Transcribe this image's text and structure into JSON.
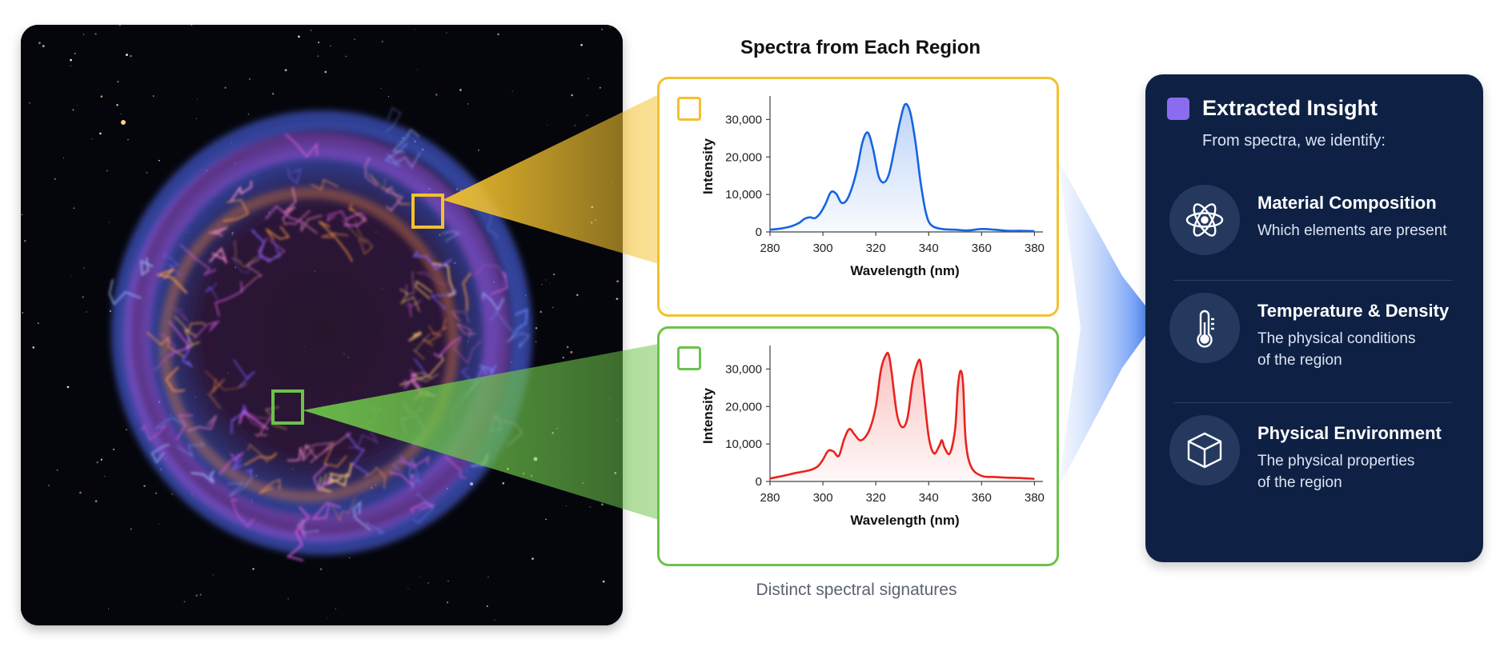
{
  "spectra_title": "Spectra from Each Region",
  "caption": "Distinct spectral signatures",
  "colors": {
    "yellow_region": "#f2c12e",
    "green_region": "#6cc24a",
    "blue_spectrum": "#1565e0",
    "red_spectrum": "#e8231d",
    "panel_bg": "#0e2144",
    "accent_square": "#8b6cf0"
  },
  "chart_data": [
    {
      "type": "line",
      "region": "yellow",
      "xlabel": "Wavelength (nm)",
      "ylabel": "Intensity",
      "xlim": [
        280,
        382
      ],
      "ylim": [
        0,
        35000
      ],
      "x_ticks": [
        "280",
        "300",
        "320",
        "340",
        "360",
        "380"
      ],
      "y_ticks": [
        "0",
        "10,000",
        "20,000",
        "30,000"
      ],
      "series": [
        {
          "x": [
            280,
            284,
            288,
            291,
            293,
            295,
            297,
            299,
            301,
            303,
            305,
            307,
            309,
            311,
            313,
            315,
            317,
            319,
            321,
            323,
            325,
            327,
            329,
            331,
            333,
            335,
            337,
            339,
            341,
            345,
            350,
            355,
            360,
            365,
            370,
            375,
            380
          ],
          "y": [
            600,
            900,
            1500,
            2400,
            3500,
            3900,
            3700,
            5000,
            7500,
            10600,
            10200,
            7800,
            8500,
            11800,
            17000,
            24000,
            26500,
            22000,
            15000,
            13200,
            15500,
            22000,
            29000,
            34000,
            32000,
            24000,
            13000,
            5000,
            1800,
            800,
            600,
            400,
            800,
            600,
            300,
            300,
            200
          ]
        }
      ]
    },
    {
      "type": "line",
      "region": "green",
      "xlabel": "Wavelength (nm)",
      "ylabel": "Intensity",
      "xlim": [
        280,
        382
      ],
      "ylim": [
        0,
        35000
      ],
      "x_ticks": [
        "280",
        "300",
        "320",
        "340",
        "360",
        "380"
      ],
      "y_ticks": [
        "0",
        "10,000",
        "20,000",
        "30,000"
      ],
      "series": [
        {
          "x": [
            280,
            285,
            290,
            295,
            298,
            300,
            302,
            304,
            306,
            308,
            310,
            312,
            314,
            316,
            318,
            320,
            322,
            324,
            325,
            326,
            328,
            330,
            332,
            334,
            336,
            337,
            338,
            340,
            342,
            344,
            345,
            346,
            348,
            350,
            351,
            352,
            353,
            354,
            356,
            360,
            365,
            370,
            375,
            380
          ],
          "y": [
            800,
            1500,
            2300,
            3000,
            4000,
            5800,
            8200,
            8000,
            6800,
            11200,
            14000,
            12500,
            11000,
            11800,
            14500,
            20000,
            30000,
            34000,
            33500,
            29000,
            18000,
            14500,
            17000,
            27000,
            32000,
            31500,
            25000,
            12000,
            7500,
            9500,
            11000,
            9000,
            7500,
            14000,
            25000,
            29500,
            26000,
            11000,
            4000,
            1500,
            1200,
            1000,
            900,
            700
          ]
        }
      ]
    }
  ],
  "insight": {
    "title": "Extracted Insight",
    "subtitle": "From spectra, we identify:",
    "items": [
      {
        "icon": "atom-icon",
        "title": "Material Composition",
        "desc_lines": [
          "Which elements are present"
        ]
      },
      {
        "icon": "thermometer-icon",
        "title": "Temperature & Density",
        "desc_lines": [
          "The physical conditions",
          "of the region"
        ]
      },
      {
        "icon": "cube-icon",
        "title": "Physical Environment",
        "desc_lines": [
          "The physical properties",
          "of the region"
        ]
      }
    ]
  }
}
